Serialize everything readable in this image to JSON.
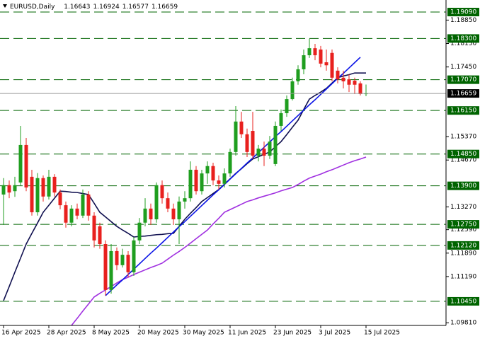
{
  "chart_data": {
    "type": "candlestick",
    "title": "EURUSD,Daily",
    "categories": [
      "16 Apr 2025",
      null,
      null,
      null,
      null,
      null,
      null,
      null,
      "28 Apr 2025",
      null,
      null,
      null,
      null,
      null,
      null,
      null,
      "8 May 2025",
      null,
      null,
      null,
      null,
      null,
      null,
      null,
      "20 May 2025",
      null,
      null,
      null,
      null,
      null,
      null,
      null,
      "30 May 2025",
      null,
      null,
      null,
      null,
      null,
      null,
      null,
      "11 Jun 2025",
      null,
      null,
      null,
      null,
      null,
      null,
      null,
      "23 Jun 2025",
      null,
      null,
      null,
      null,
      null,
      null,
      null,
      "3 Jul 2025",
      null,
      null,
      null,
      null,
      null,
      null,
      null,
      "15 Jul 2025"
    ],
    "open": [
      1.1364,
      1.1392,
      1.1374,
      1.14,
      1.1512,
      1.1417,
      1.1311,
      1.1413,
      1.1358,
      1.1417,
      1.137,
      1.1332,
      1.128,
      1.1322,
      1.1301,
      1.1364,
      1.1301,
      1.1269,
      1.1216,
      1.1079,
      1.1195,
      1.1153,
      1.1184,
      1.1132,
      1.1227,
      1.128,
      1.1322,
      1.129,
      1.1392,
      1.1353,
      1.1322,
      1.129,
      1.1343,
      1.1353,
      1.1438,
      1.1374,
      1.1427,
      1.1449,
      1.1406,
      1.1396,
      1.1427,
      1.1491,
      1.1582,
      1.1544,
      1.1554,
      1.148,
      1.1501,
      1.148,
      1.1455,
      1.1569,
      1.1607,
      1.1649,
      1.1702,
      1.1738,
      1.178,
      1.1801,
      1.1797,
      1.1759,
      1.1787,
      1.1734,
      1.1713,
      1.1708,
      1.1704,
      1.1696,
      1.16643
    ],
    "high": [
      1.1413,
      1.1406,
      1.1417,
      1.1569,
      1.1533,
      1.1438,
      1.1428,
      1.1421,
      1.1438,
      1.1425,
      1.1379,
      1.1343,
      1.1332,
      1.1337,
      1.1379,
      1.1374,
      1.1311,
      1.128,
      1.1227,
      1.1216,
      1.1206,
      1.1202,
      1.1195,
      1.1237,
      1.1294,
      1.1353,
      1.1337,
      1.14,
      1.1406,
      1.137,
      1.1337,
      1.1358,
      1.1374,
      1.1463,
      1.1449,
      1.1438,
      1.1463,
      1.1459,
      1.1421,
      1.1442,
      1.1501,
      1.1628,
      1.1611,
      1.1561,
      1.1611,
      1.1512,
      1.1522,
      1.1539,
      1.1582,
      1.1618,
      1.166,
      1.1713,
      1.175,
      1.1797,
      1.1829,
      1.1814,
      1.1808,
      1.1797,
      1.1797,
      1.1744,
      1.1734,
      1.1723,
      1.1713,
      1.1702,
      1.16924
    ],
    "low": [
      1.1273,
      1.1353,
      1.1357,
      1.1392,
      1.1374,
      1.1301,
      1.1301,
      1.1343,
      1.1349,
      1.1358,
      1.132,
      1.1265,
      1.1269,
      1.129,
      1.1294,
      1.1286,
      1.1206,
      1.1202,
      1.1062,
      1.1068,
      1.1138,
      1.1146,
      1.1117,
      1.1121,
      1.1216,
      1.1269,
      1.1273,
      1.128,
      1.1337,
      1.1311,
      1.1273,
      1.1216,
      1.1322,
      1.1343,
      1.1364,
      1.1364,
      1.1396,
      1.1392,
      1.1379,
      1.1385,
      1.1417,
      1.148,
      1.1533,
      1.1476,
      1.147,
      1.1463,
      1.1449,
      1.147,
      1.1449,
      1.1554,
      1.1596,
      1.1645,
      1.1692,
      1.1723,
      1.1772,
      1.1765,
      1.1744,
      1.1734,
      1.1702,
      1.1696,
      1.1681,
      1.167,
      1.1664,
      1.166,
      1.16577
    ],
    "close": [
      1.1392,
      1.137,
      1.1392,
      1.1512,
      1.1385,
      1.1311,
      1.1413,
      1.1358,
      1.1417,
      1.137,
      1.1332,
      1.128,
      1.1322,
      1.1301,
      1.1364,
      1.1301,
      1.1227,
      1.1216,
      1.1079,
      1.1195,
      1.1153,
      1.1184,
      1.1132,
      1.1227,
      1.128,
      1.1322,
      1.129,
      1.1392,
      1.1353,
      1.1322,
      1.129,
      1.1343,
      1.1353,
      1.1438,
      1.1374,
      1.1427,
      1.1449,
      1.1406,
      1.1396,
      1.1427,
      1.1491,
      1.1582,
      1.1544,
      1.1491,
      1.148,
      1.1501,
      1.148,
      1.1522,
      1.1569,
      1.1607,
      1.1649,
      1.1702,
      1.1738,
      1.178,
      1.1801,
      1.178,
      1.1755,
      1.175,
      1.1713,
      1.1708,
      1.1702,
      1.1692,
      1.1692,
      1.1664,
      1.16659
    ],
    "up_color": "#1f9e1f",
    "down_color": "#e8201e",
    "series": [
      {
        "color": "#101050",
        "values": [
          1.1047,
          1.1089,
          1.1132,
          1.1174,
          1.1216,
          1.1248,
          1.1279,
          1.1311,
          1.1332,
          1.1353,
          1.1374,
          1.1373,
          1.1371,
          1.137,
          1.1367,
          1.1364,
          1.1338,
          1.1311,
          1.1297,
          1.1283,
          1.1269,
          1.1258,
          1.1248,
          1.1237,
          1.1239,
          1.124,
          1.1242,
          1.1244,
          1.1245,
          1.1247,
          1.1248,
          1.1269,
          1.129,
          1.1308,
          1.1325,
          1.1343,
          1.1355,
          1.1367,
          1.1379,
          1.1395,
          1.1411,
          1.1427,
          1.1441,
          1.1456,
          1.147,
          1.1477,
          1.1484,
          1.1491,
          1.1507,
          1.1522,
          1.1543,
          1.1565,
          1.1586,
          1.1618,
          1.1649,
          1.166,
          1.167,
          1.1681,
          1.1697,
          1.1713,
          1.1718,
          1.1722,
          1.1727,
          1.1727,
          1.1727
        ]
      },
      {
        "color": "#a030e0",
        "values": [
          null,
          null,
          null,
          null,
          null,
          null,
          null,
          null,
          null,
          null,
          null,
          null,
          1.0973,
          1.0994,
          1.1016,
          1.1037,
          1.1058,
          1.1069,
          1.1079,
          1.1089,
          1.11,
          1.111,
          1.1117,
          1.1125,
          1.1132,
          1.1139,
          1.1146,
          1.1152,
          1.1159,
          1.1171,
          1.1183,
          1.1194,
          1.1206,
          1.1219,
          1.1232,
          1.1245,
          1.1258,
          1.1276,
          1.1293,
          1.1311,
          1.1319,
          1.1327,
          1.1335,
          1.1343,
          1.1348,
          1.1354,
          1.1359,
          1.1364,
          1.1369,
          1.1375,
          1.138,
          1.1385,
          1.1394,
          1.1404,
          1.1413,
          1.1419,
          1.1425,
          1.1432,
          1.1438,
          1.1445,
          1.1452,
          1.1459,
          1.1465,
          1.147,
          1.1476
        ]
      },
      {
        "color": "#0a14e6",
        "values": [
          null,
          null,
          null,
          null,
          null,
          null,
          null,
          null,
          null,
          null,
          null,
          null,
          null,
          null,
          null,
          null,
          null,
          null,
          1.1062,
          1.1078,
          1.1094,
          1.1109,
          1.1125,
          1.1141,
          1.1157,
          1.1173,
          1.1189,
          1.1204,
          1.122,
          1.1236,
          1.1252,
          1.1268,
          1.1283,
          1.1299,
          1.1315,
          1.1331,
          1.1347,
          1.1363,
          1.1378,
          1.1394,
          1.141,
          1.1426,
          1.1442,
          1.1458,
          1.1473,
          1.1489,
          1.1505,
          1.1521,
          1.1537,
          1.1552,
          1.1568,
          1.1584,
          1.16,
          1.1616,
          1.1632,
          1.1647,
          1.1663,
          1.1679,
          1.1695,
          1.1711,
          1.1726,
          1.1742,
          1.1758,
          1.1774,
          null
        ]
      }
    ],
    "ylim": [
      1.0973,
      1.1945
    ],
    "yticks": [
      {
        "value": 1.1885,
        "label": "1.18850"
      },
      {
        "value": 1.1815,
        "label": "1.18150"
      },
      {
        "value": 1.1745,
        "label": "1.17450"
      },
      {
        "value": 1.1537,
        "label": "1.15370"
      },
      {
        "value": 1.1467,
        "label": "1.14670"
      },
      {
        "value": 1.1327,
        "label": "1.13270"
      },
      {
        "value": 1.1259,
        "label": "1.12590"
      },
      {
        "value": 1.1189,
        "label": "1.11890"
      },
      {
        "value": 1.1119,
        "label": "1.11190"
      },
      {
        "value": 1.0981,
        "label": "1.09810"
      }
    ],
    "levels": [
      {
        "value": 1.1909,
        "label": "1.19090"
      },
      {
        "value": 1.183,
        "label": "1.18300"
      },
      {
        "value": 1.1707,
        "label": "1.17070"
      },
      {
        "value": 1.1615,
        "label": "1.16150"
      },
      {
        "value": 1.1485,
        "label": "1.14850"
      },
      {
        "value": 1.139,
        "label": "1.13900"
      },
      {
        "value": 1.1275,
        "label": "1.12750"
      },
      {
        "value": 1.1212,
        "label": "1.12120"
      },
      {
        "value": 1.1045,
        "label": "1.10450"
      }
    ],
    "level_color": "#006400",
    "grid": false
  }
}
